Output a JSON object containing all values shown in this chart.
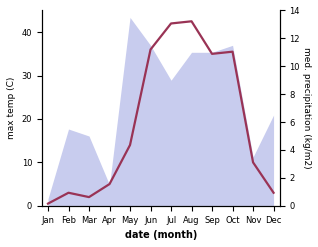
{
  "months": [
    "Jan",
    "Feb",
    "Mar",
    "Apr",
    "May",
    "Jun",
    "Jul",
    "Aug",
    "Sep",
    "Oct",
    "Nov",
    "Dec"
  ],
  "precipitation": [
    0.5,
    5.5,
    5.0,
    1.5,
    13.5,
    11.5,
    9.0,
    11.0,
    11.0,
    11.5,
    3.5,
    6.5
  ],
  "temperature": [
    0.5,
    3.0,
    2.0,
    5.0,
    14.0,
    36.0,
    42.0,
    42.5,
    35.0,
    35.5,
    10.0,
    3.0
  ],
  "temp_color": "#993355",
  "precip_fill_color": "#c8ccee",
  "xlabel": "date (month)",
  "ylabel_left": "max temp (C)",
  "ylabel_right": "med. precipitation (kg/m2)",
  "ylim_left": [
    0,
    45
  ],
  "ylim_right": [
    0,
    14
  ],
  "precip_scale": 45,
  "precip_max": 14,
  "yticks_left": [
    0,
    10,
    20,
    30,
    40
  ],
  "yticks_right": [
    0,
    2,
    4,
    6,
    8,
    10,
    12,
    14
  ],
  "fig_width": 3.18,
  "fig_height": 2.47,
  "dpi": 100
}
